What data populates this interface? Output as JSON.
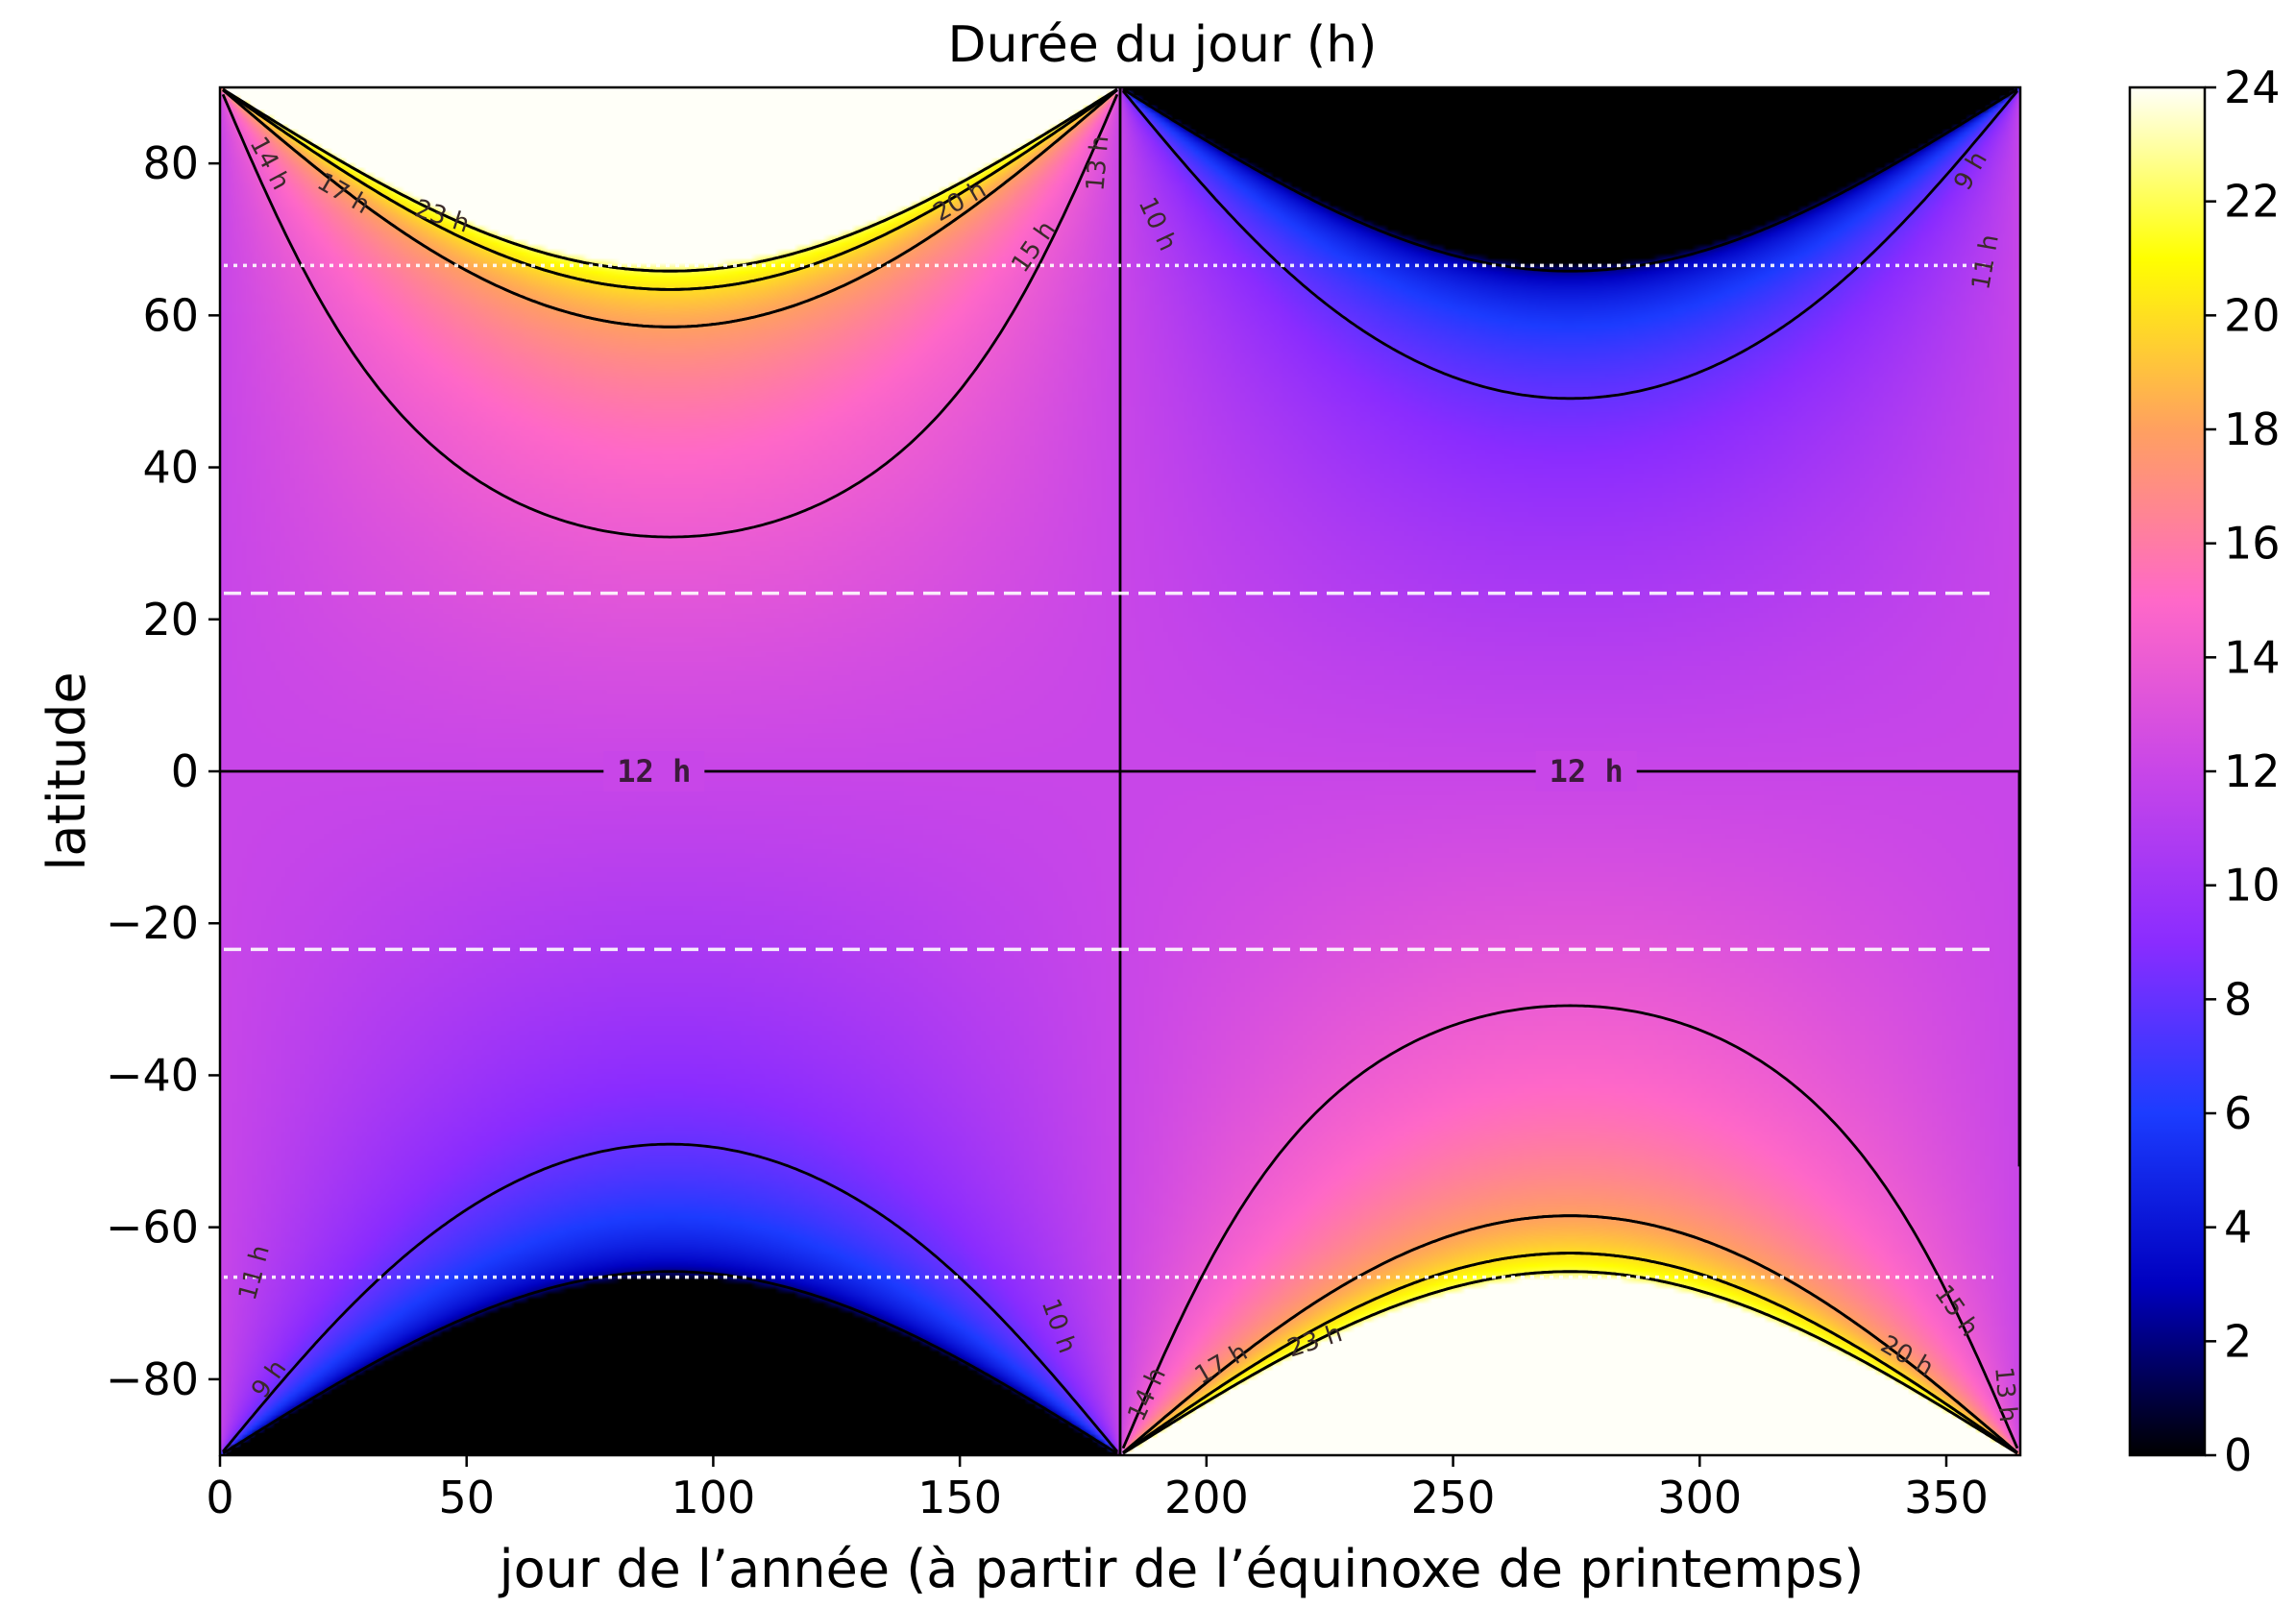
{
  "chart_data": {
    "type": "heatmap",
    "title": "Durée du jour (h)",
    "xlabel": "jour de l’année (à partir de l’équinoxe de printemps)",
    "ylabel": "latitude",
    "xlim": [
      0,
      365
    ],
    "ylim": [
      -90,
      90
    ],
    "x_ticks": [
      "0",
      "50",
      "100",
      "150",
      "200",
      "250",
      "300",
      "350"
    ],
    "y_ticks": [
      "80",
      "60",
      "40",
      "20",
      "0",
      "−20",
      "−40",
      "−60",
      "−80"
    ],
    "colorbar": {
      "min": 0,
      "max": 24,
      "ticks": [
        "0",
        "2",
        "4",
        "6",
        "8",
        "10",
        "12",
        "14",
        "16",
        "18",
        "20",
        "22",
        "24"
      ],
      "colormap": "gnuplot2",
      "colors": [
        "#000000",
        "#0000c0",
        "#1c3cff",
        "#8a2cff",
        "#c846e8",
        "#ff68c8",
        "#ffa060",
        "#ffff00",
        "#fffff8"
      ]
    },
    "model": {
      "obliquity_deg": 23.44,
      "year_days": 365
    },
    "reference_lines": [
      {
        "name": "tropic-north",
        "latitude": 23.44,
        "style": "dashed",
        "color": "#ffffff"
      },
      {
        "name": "tropic-south",
        "latitude": -23.44,
        "style": "dashed",
        "color": "#ffffff"
      },
      {
        "name": "arctic-circle",
        "latitude": 66.56,
        "style": "dotted",
        "color": "#ffffff"
      },
      {
        "name": "antarctic-circle",
        "latitude": -66.56,
        "style": "dotted",
        "color": "#ffffff"
      }
    ],
    "contour_levels_h": [
      9,
      10,
      11,
      12,
      13,
      14,
      15,
      17,
      20,
      23
    ],
    "contour_labels": [
      {
        "text": "14 h",
        "day": 10,
        "lat": 80,
        "angle": 62
      },
      {
        "text": "17 h",
        "day": 25,
        "lat": 76,
        "angle": 30
      },
      {
        "text": "23 h",
        "day": 45,
        "lat": 73,
        "angle": 18
      },
      {
        "text": "20 h",
        "day": 150,
        "lat": 75,
        "angle": -30
      },
      {
        "text": "15 h",
        "day": 165,
        "lat": 69,
        "angle": -55
      },
      {
        "text": "13 h",
        "day": 178,
        "lat": 80,
        "angle": -85
      },
      {
        "text": "10 h",
        "day": 190,
        "lat": 72,
        "angle": 65
      },
      {
        "text": "9 h",
        "day": 355,
        "lat": 79,
        "angle": -60
      },
      {
        "text": "11 h",
        "day": 358,
        "lat": 67,
        "angle": -80
      },
      {
        "text": "12 h",
        "day": 88,
        "lat": 0,
        "angle": 0
      },
      {
        "text": "12 h",
        "day": 277,
        "lat": 0,
        "angle": 0
      },
      {
        "text": "11 h",
        "day": 7,
        "lat": -66,
        "angle": -75
      },
      {
        "text": "9 h",
        "day": 10,
        "lat": -80,
        "angle": -55
      },
      {
        "text": "10 h",
        "day": 170,
        "lat": -73,
        "angle": 70
      },
      {
        "text": "14 h",
        "day": 188,
        "lat": -82,
        "angle": -65
      },
      {
        "text": "17 h",
        "day": 203,
        "lat": -78,
        "angle": -30
      },
      {
        "text": "23 h",
        "day": 222,
        "lat": -75,
        "angle": -18
      },
      {
        "text": "20 h",
        "day": 342,
        "lat": -77,
        "angle": 30
      },
      {
        "text": "15 h",
        "day": 352,
        "lat": -71,
        "angle": 55
      },
      {
        "text": "13 h",
        "day": 362,
        "lat": -82,
        "angle": 85
      }
    ]
  }
}
